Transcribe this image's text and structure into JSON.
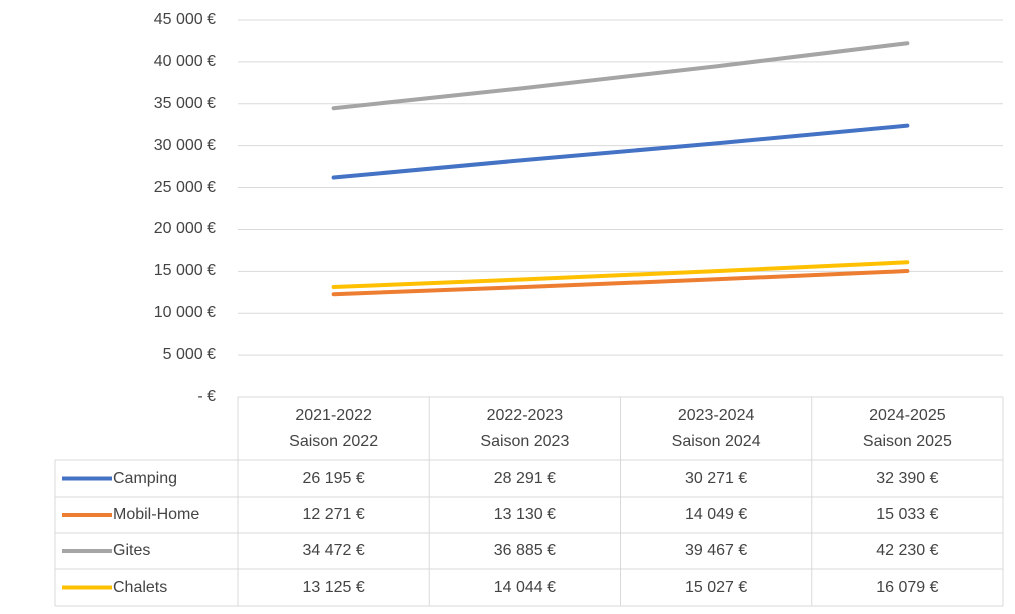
{
  "chart_data": {
    "type": "line",
    "categories": [
      "2021-2022\nSaison 2022",
      "2022-2023\nSaison 2023",
      "2023-2024\nSaison 2024",
      "2024-2025\nSaison 2025"
    ],
    "series": [
      {
        "name": "Camping",
        "color": "#4472c4",
        "values": [
          26195,
          28291,
          30271,
          32390
        ],
        "value_labels": [
          "26 195 €",
          "28 291 €",
          "30 271 €",
          "32 390 €"
        ]
      },
      {
        "name": "Mobil-Home",
        "color": "#ed7d31",
        "values": [
          12271,
          13130,
          14049,
          15033
        ],
        "value_labels": [
          "12 271 €",
          "13 130 €",
          "14 049 €",
          "15 033 €"
        ]
      },
      {
        "name": "Gites",
        "color": "#a5a5a5",
        "values": [
          34472,
          36885,
          39467,
          42230
        ],
        "value_labels": [
          "34 472 €",
          "36 885 €",
          "39 467 €",
          "42 230 €"
        ]
      },
      {
        "name": "Chalets",
        "color": "#ffc000",
        "values": [
          13125,
          14044,
          15027,
          16079
        ],
        "value_labels": [
          "13 125 €",
          "14 044 €",
          "15 027 €",
          "16 079 €"
        ]
      }
    ],
    "ylim": [
      0,
      45000
    ],
    "yticks": [
      {
        "value": 0,
        "label": "-   €"
      },
      {
        "value": 5000,
        "label": "5 000 €"
      },
      {
        "value": 10000,
        "label": "10 000 €"
      },
      {
        "value": 15000,
        "label": "15 000 €"
      },
      {
        "value": 20000,
        "label": "20 000 €"
      },
      {
        "value": 25000,
        "label": "25 000 €"
      },
      {
        "value": 30000,
        "label": "30 000 €"
      },
      {
        "value": 35000,
        "label": "35 000 €"
      },
      {
        "value": 40000,
        "label": "40 000 €"
      },
      {
        "value": 45000,
        "label": "45 000 €"
      }
    ],
    "grid": true
  }
}
